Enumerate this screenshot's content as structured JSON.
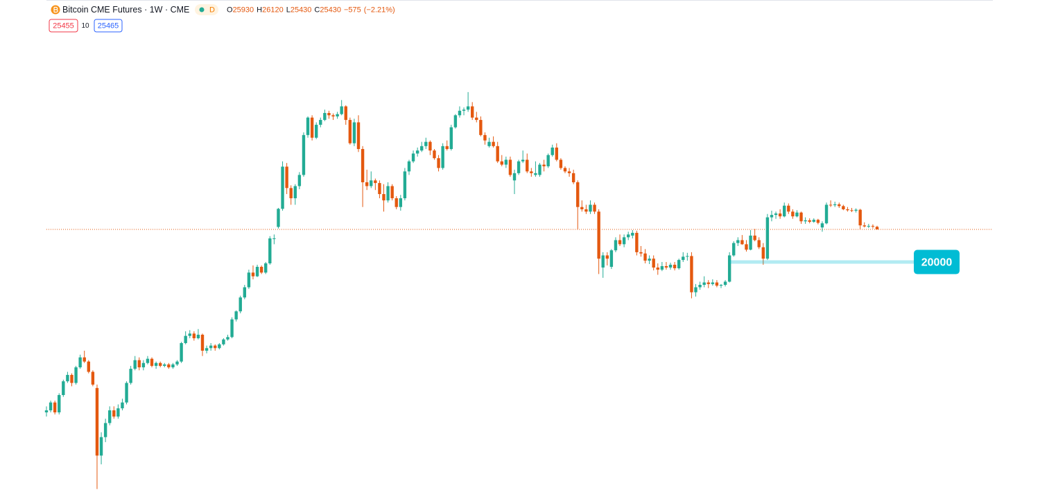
{
  "chart_data": {
    "type": "candlestick",
    "title": "Bitcoin CME Futures · 1W · CME",
    "interval_badge": "D",
    "ohlc_labels": [
      "O",
      "H",
      "L",
      "C"
    ],
    "change": {
      "value": -575,
      "label": "−575"
    },
    "change_percent": {
      "value": -2.21,
      "label": "(−2.21%)"
    },
    "bid": 25455,
    "spread": 10,
    "ask": 25465,
    "log_scale": true,
    "ylim": [
      3485,
      104200
    ],
    "up_color": "#22ab94",
    "down_color": "#e4580f",
    "hline": {
      "value": 20000,
      "color": "#00bcd4"
    },
    "ohlc": [
      [
        6600,
        6900,
        6400,
        6700
      ],
      [
        6700,
        7200,
        6600,
        7100
      ],
      [
        7100,
        7200,
        6500,
        6600
      ],
      [
        6600,
        7600,
        6500,
        7500
      ],
      [
        7500,
        8400,
        7400,
        8300
      ],
      [
        8300,
        8900,
        8200,
        8700
      ],
      [
        8700,
        8800,
        8000,
        8200
      ],
      [
        8200,
        9300,
        8100,
        9200
      ],
      [
        9200,
        10100,
        9100,
        9900
      ],
      [
        9900,
        10400,
        9500,
        9600
      ],
      [
        9600,
        9700,
        8800,
        8900
      ],
      [
        8900,
        9000,
        8000,
        8100
      ],
      [
        7900,
        8100,
        3750,
        4800
      ],
      [
        4800,
        5700,
        4500,
        5500
      ],
      [
        5500,
        6300,
        5300,
        6100
      ],
      [
        6100,
        6900,
        6000,
        6700
      ],
      [
        6700,
        6900,
        6300,
        6400
      ],
      [
        6400,
        7000,
        6300,
        6800
      ],
      [
        6800,
        7300,
        6700,
        7100
      ],
      [
        7100,
        8300,
        7000,
        8200
      ],
      [
        8200,
        9300,
        8100,
        9100
      ],
      [
        9100,
        10000,
        9000,
        9700
      ],
      [
        9700,
        9900,
        9000,
        9200
      ],
      [
        9200,
        9700,
        9000,
        9500
      ],
      [
        9500,
        10000,
        9400,
        9800
      ],
      [
        9800,
        9900,
        9200,
        9300
      ],
      [
        9300,
        9600,
        9100,
        9500
      ],
      [
        9500,
        9600,
        9200,
        9300
      ],
      [
        9300,
        9500,
        9200,
        9400
      ],
      [
        9400,
        9500,
        9100,
        9200
      ],
      [
        9200,
        9500,
        9100,
        9400
      ],
      [
        9400,
        9700,
        9300,
        9600
      ],
      [
        9600,
        11100,
        9500,
        11000
      ],
      [
        11000,
        12000,
        10900,
        11600
      ],
      [
        11600,
        12100,
        11400,
        11800
      ],
      [
        11800,
        12000,
        11200,
        11400
      ],
      [
        11400,
        12200,
        11300,
        11700
      ],
      [
        11700,
        11800,
        10000,
        10400
      ],
      [
        10400,
        10800,
        10200,
        10600
      ],
      [
        10600,
        11000,
        10400,
        10800
      ],
      [
        10800,
        10900,
        10400,
        10600
      ],
      [
        10600,
        11000,
        10500,
        10900
      ],
      [
        10900,
        11400,
        10800,
        11300
      ],
      [
        11300,
        11700,
        11200,
        11500
      ],
      [
        11500,
        13300,
        11400,
        13100
      ],
      [
        13100,
        14000,
        12900,
        13900
      ],
      [
        13900,
        15600,
        13700,
        15400
      ],
      [
        15400,
        16900,
        15200,
        16600
      ],
      [
        16600,
        18900,
        16400,
        18500
      ],
      [
        18500,
        19500,
        17600,
        18000
      ],
      [
        18000,
        19600,
        17900,
        19300
      ],
      [
        19300,
        19500,
        18300,
        18500
      ],
      [
        18500,
        20000,
        18300,
        19800
      ],
      [
        19800,
        24200,
        19600,
        23800
      ],
      [
        23800,
        24500,
        22800,
        23800
      ],
      [
        25900,
        29800,
        25600,
        29600
      ],
      [
        29600,
        42000,
        29200,
        40400
      ],
      [
        40400,
        41500,
        33000,
        34500
      ],
      [
        34500,
        35200,
        30500,
        32000
      ],
      [
        32000,
        35500,
        30500,
        35000
      ],
      [
        35000,
        38800,
        34200,
        38000
      ],
      [
        38000,
        52000,
        37500,
        51000
      ],
      [
        51000,
        58500,
        50000,
        58000
      ],
      [
        58000,
        59000,
        49000,
        50000
      ],
      [
        50000,
        56000,
        49500,
        55000
      ],
      [
        55000,
        58000,
        54000,
        57000
      ],
      [
        57000,
        61500,
        56500,
        60000
      ],
      [
        60000,
        61000,
        57500,
        59000
      ],
      [
        59000,
        59800,
        57000,
        58500
      ],
      [
        58500,
        60500,
        57500,
        59500
      ],
      [
        59500,
        66000,
        59000,
        63000
      ],
      [
        63000,
        63500,
        55000,
        57000
      ],
      [
        57000,
        58000,
        47500,
        48000
      ],
      [
        48000,
        57500,
        47000,
        56000
      ],
      [
        56000,
        59000,
        45000,
        46000
      ],
      [
        46000,
        47000,
        30000,
        36000
      ],
      [
        36000,
        39500,
        34000,
        35000
      ],
      [
        35000,
        39000,
        34500,
        36500
      ],
      [
        36500,
        37000,
        34000,
        35800
      ],
      [
        35800,
        36500,
        32000,
        33000
      ],
      [
        33000,
        35500,
        29000,
        31500
      ],
      [
        31500,
        36000,
        31000,
        35000
      ],
      [
        35000,
        35500,
        31500,
        32000
      ],
      [
        32000,
        32500,
        29500,
        30000
      ],
      [
        30000,
        32800,
        29200,
        32000
      ],
      [
        32000,
        40000,
        31500,
        39000
      ],
      [
        39000,
        42500,
        38000,
        42000
      ],
      [
        42000,
        45500,
        41500,
        44500
      ],
      [
        44500,
        46500,
        43500,
        45500
      ],
      [
        45500,
        48500,
        45000,
        47000
      ],
      [
        47000,
        50000,
        46000,
        48500
      ],
      [
        48500,
        49000,
        44000,
        45500
      ],
      [
        45500,
        46000,
        42500,
        43000
      ],
      [
        43000,
        44000,
        39000,
        40000
      ],
      [
        40000,
        48000,
        39500,
        47000
      ],
      [
        47000,
        49000,
        45500,
        46000
      ],
      [
        46000,
        55000,
        45500,
        54000
      ],
      [
        54000,
        59500,
        53500,
        59000
      ],
      [
        59000,
        63000,
        58000,
        61000
      ],
      [
        61000,
        62500,
        59000,
        61500
      ],
      [
        61500,
        70000,
        60500,
        63000
      ],
      [
        63000,
        65000,
        57000,
        58000
      ],
      [
        58000,
        60500,
        56000,
        57000
      ],
      [
        57000,
        58500,
        50500,
        51000
      ],
      [
        51000,
        52000,
        47500,
        49000
      ],
      [
        47000,
        50000,
        46500,
        48500
      ],
      [
        48500,
        50500,
        46500,
        47000
      ],
      [
        47000,
        48500,
        41500,
        42000
      ],
      [
        42000,
        44000,
        40500,
        41000
      ],
      [
        41000,
        43500,
        40000,
        42500
      ],
      [
        42500,
        43500,
        37500,
        38000
      ],
      [
        36500,
        39500,
        33000,
        38500
      ],
      [
        38500,
        42500,
        38000,
        42000
      ],
      [
        42000,
        45500,
        41500,
        42500
      ],
      [
        42500,
        44500,
        38500,
        39000
      ],
      [
        39000,
        40000,
        37500,
        38500
      ],
      [
        38000,
        42000,
        37500,
        38500
      ],
      [
        38000,
        41500,
        37500,
        41000
      ],
      [
        41000,
        42500,
        39000,
        40500
      ],
      [
        40500,
        44500,
        40000,
        44000
      ],
      [
        44000,
        47500,
        43500,
        46500
      ],
      [
        46500,
        48000,
        42000,
        42500
      ],
      [
        42500,
        43000,
        39500,
        40000
      ],
      [
        40000,
        40500,
        38500,
        39000
      ],
      [
        39000,
        40000,
        37500,
        38500
      ],
      [
        38500,
        39500,
        35500,
        36000
      ],
      [
        36000,
        36500,
        25500,
        30000
      ],
      [
        30000,
        31500,
        29000,
        29500
      ],
      [
        29500,
        30500,
        28500,
        29000
      ],
      [
        29000,
        31500,
        28500,
        30500
      ],
      [
        30500,
        31000,
        28500,
        29000
      ],
      [
        29000,
        29500,
        18300,
        20500
      ],
      [
        19200,
        21500,
        17800,
        21000
      ],
      [
        21000,
        21500,
        19500,
        20500
      ],
      [
        19300,
        22000,
        19000,
        21800
      ],
      [
        21800,
        24000,
        21500,
        23500
      ],
      [
        23500,
        24500,
        22500,
        22800
      ],
      [
        22800,
        24500,
        22300,
        24000
      ],
      [
        24000,
        25000,
        23500,
        24500
      ],
      [
        24300,
        25300,
        23800,
        24800
      ],
      [
        24800,
        25200,
        21000,
        21500
      ],
      [
        21500,
        22500,
        20800,
        21300
      ],
      [
        21300,
        22000,
        19800,
        20200
      ],
      [
        20200,
        21000,
        19700,
        20500
      ],
      [
        20500,
        21000,
        18800,
        19200
      ],
      [
        19200,
        19800,
        18200,
        18900
      ],
      [
        18900,
        20000,
        18700,
        19400
      ],
      [
        19400,
        20000,
        18900,
        19200
      ],
      [
        19200,
        19900,
        18900,
        19600
      ],
      [
        19600,
        20000,
        18800,
        19100
      ],
      [
        19100,
        20500,
        18900,
        20300
      ],
      [
        20300,
        21500,
        20000,
        20800
      ],
      [
        20800,
        21400,
        20200,
        20900
      ],
      [
        20900,
        21500,
        15300,
        16000
      ],
      [
        16000,
        17000,
        15500,
        16600
      ],
      [
        16600,
        17300,
        16300,
        16900
      ],
      [
        16900,
        18000,
        16600,
        17200
      ],
      [
        17200,
        17500,
        16500,
        17000
      ],
      [
        17000,
        17600,
        16800,
        17200
      ],
      [
        17200,
        17500,
        16600,
        16800
      ],
      [
        16800,
        17000,
        16500,
        16900
      ],
      [
        16900,
        17500,
        16700,
        17300
      ],
      [
        17300,
        21500,
        17200,
        21000
      ],
      [
        21000,
        23300,
        20800,
        23000
      ],
      [
        23000,
        24000,
        22500,
        23500
      ],
      [
        23500,
        24400,
        22700,
        22800
      ],
      [
        22800,
        23500,
        21600,
        21900
      ],
      [
        21900,
        25300,
        21800,
        24300
      ],
      [
        24300,
        25500,
        23300,
        23500
      ],
      [
        23500,
        24000,
        22000,
        22300
      ],
      [
        22300,
        23000,
        19600,
        20500
      ],
      [
        20500,
        28500,
        20300,
        27800
      ],
      [
        27800,
        29200,
        27000,
        28300
      ],
      [
        28300,
        29000,
        27500,
        28600
      ],
      [
        28600,
        29500,
        27500,
        28000
      ],
      [
        28000,
        31000,
        27800,
        30300
      ],
      [
        30300,
        30800,
        28500,
        29000
      ],
      [
        29000,
        29500,
        27500,
        28000
      ],
      [
        28000,
        29300,
        27800,
        28800
      ],
      [
        28800,
        29000,
        26500,
        27000
      ],
      [
        27000,
        27800,
        26500,
        27200
      ],
      [
        27200,
        27600,
        26600,
        26900
      ],
      [
        26900,
        27600,
        26700,
        27300
      ],
      [
        27300,
        27500,
        26400,
        26700
      ],
      [
        25800,
        27000,
        25000,
        26600
      ],
      [
        26600,
        31000,
        26400,
        30500
      ],
      [
        30500,
        31500,
        30000,
        30400
      ],
      [
        30400,
        31200,
        30000,
        30600
      ],
      [
        30600,
        31000,
        29800,
        30200
      ],
      [
        30200,
        30500,
        29300,
        29500
      ],
      [
        29500,
        30000,
        29000,
        29300
      ],
      [
        29300,
        29800,
        28900,
        29200
      ],
      [
        29200,
        29700,
        28800,
        29400
      ],
      [
        29400,
        29600,
        25500,
        26200
      ],
      [
        26200,
        26800,
        25800,
        26000
      ],
      [
        26000,
        26500,
        25700,
        26100
      ],
      [
        26100,
        26400,
        25600,
        26005
      ],
      [
        25930,
        26120,
        25430,
        25430
      ]
    ]
  }
}
